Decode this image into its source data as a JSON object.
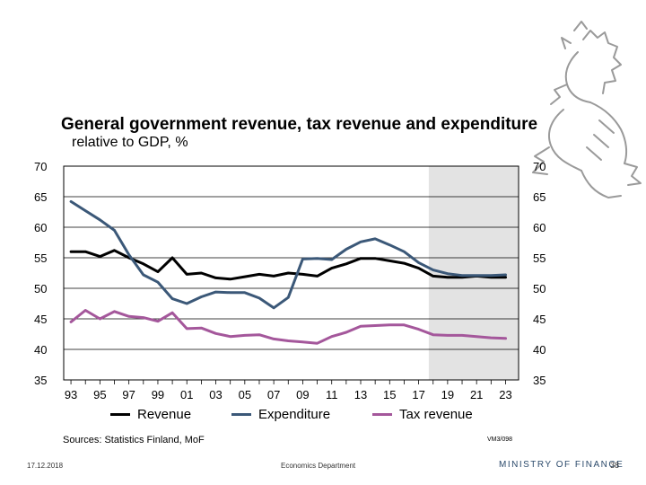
{
  "chart_data": {
    "type": "line",
    "title": "General government revenue, tax revenue and expenditure",
    "subtitle": "relative to GDP, %",
    "x": [
      1993,
      1994,
      1995,
      1996,
      1997,
      1998,
      1999,
      2000,
      2001,
      2002,
      2003,
      2004,
      2005,
      2006,
      2007,
      2008,
      2009,
      2010,
      2011,
      2012,
      2013,
      2014,
      2015,
      2016,
      2017,
      2018,
      2019,
      2020,
      2021,
      2022,
      2023
    ],
    "x_tick_labels": [
      "93",
      "95",
      "97",
      "99",
      "01",
      "03",
      "05",
      "07",
      "09",
      "11",
      "13",
      "15",
      "17",
      "19",
      "21",
      "23"
    ],
    "x_tick_years": [
      1993,
      1995,
      1997,
      1999,
      2001,
      2003,
      2005,
      2007,
      2009,
      2011,
      2013,
      2015,
      2017,
      2019,
      2021,
      2023
    ],
    "ylim": [
      35,
      70
    ],
    "y_ticks": [
      "35",
      "40",
      "45",
      "50",
      "55",
      "60",
      "65",
      "70"
    ],
    "forecast_start": 2017.7,
    "series": [
      {
        "name": "Revenue",
        "color": "#000000",
        "values": [
          56.0,
          56.0,
          55.2,
          56.2,
          55.0,
          54.0,
          52.7,
          55.0,
          52.3,
          52.5,
          51.7,
          51.5,
          51.9,
          52.3,
          52.0,
          52.5,
          52.3,
          52.0,
          53.3,
          54.0,
          54.9,
          54.9,
          54.5,
          54.1,
          53.3,
          52.0,
          51.8,
          51.8,
          52.0,
          51.8,
          51.8
        ]
      },
      {
        "name": "Expenditure",
        "color": "#3b5878",
        "values": [
          64.2,
          62.7,
          61.2,
          59.5,
          55.5,
          52.2,
          51.0,
          48.3,
          47.5,
          48.6,
          49.4,
          49.3,
          49.3,
          48.4,
          46.8,
          48.5,
          54.8,
          54.9,
          54.7,
          56.4,
          57.6,
          58.1,
          57.1,
          56.0,
          54.2,
          53.0,
          52.4,
          52.1,
          52.1,
          52.1,
          52.2
        ]
      },
      {
        "name": "Tax revenue",
        "color": "#a4579b",
        "values": [
          44.5,
          46.4,
          45.0,
          46.2,
          45.4,
          45.2,
          44.6,
          46.0,
          43.4,
          43.5,
          42.6,
          42.1,
          42.3,
          42.4,
          41.7,
          41.4,
          41.2,
          41.0,
          42.1,
          42.8,
          43.8,
          43.9,
          44.0,
          44.0,
          43.3,
          42.4,
          42.3,
          42.3,
          42.1,
          41.9,
          41.8
        ]
      }
    ],
    "legend": [
      "Revenue",
      "Expenditure",
      "Tax revenue"
    ],
    "legend_position": "bottom"
  },
  "sources": "Sources: Statistics Finland, MoF",
  "chart_code": "VM3/098",
  "footer": {
    "date": "17.12.2018",
    "department": "Economics Department",
    "ministry": "MINISTRY OF FINANCE",
    "page": "38"
  }
}
